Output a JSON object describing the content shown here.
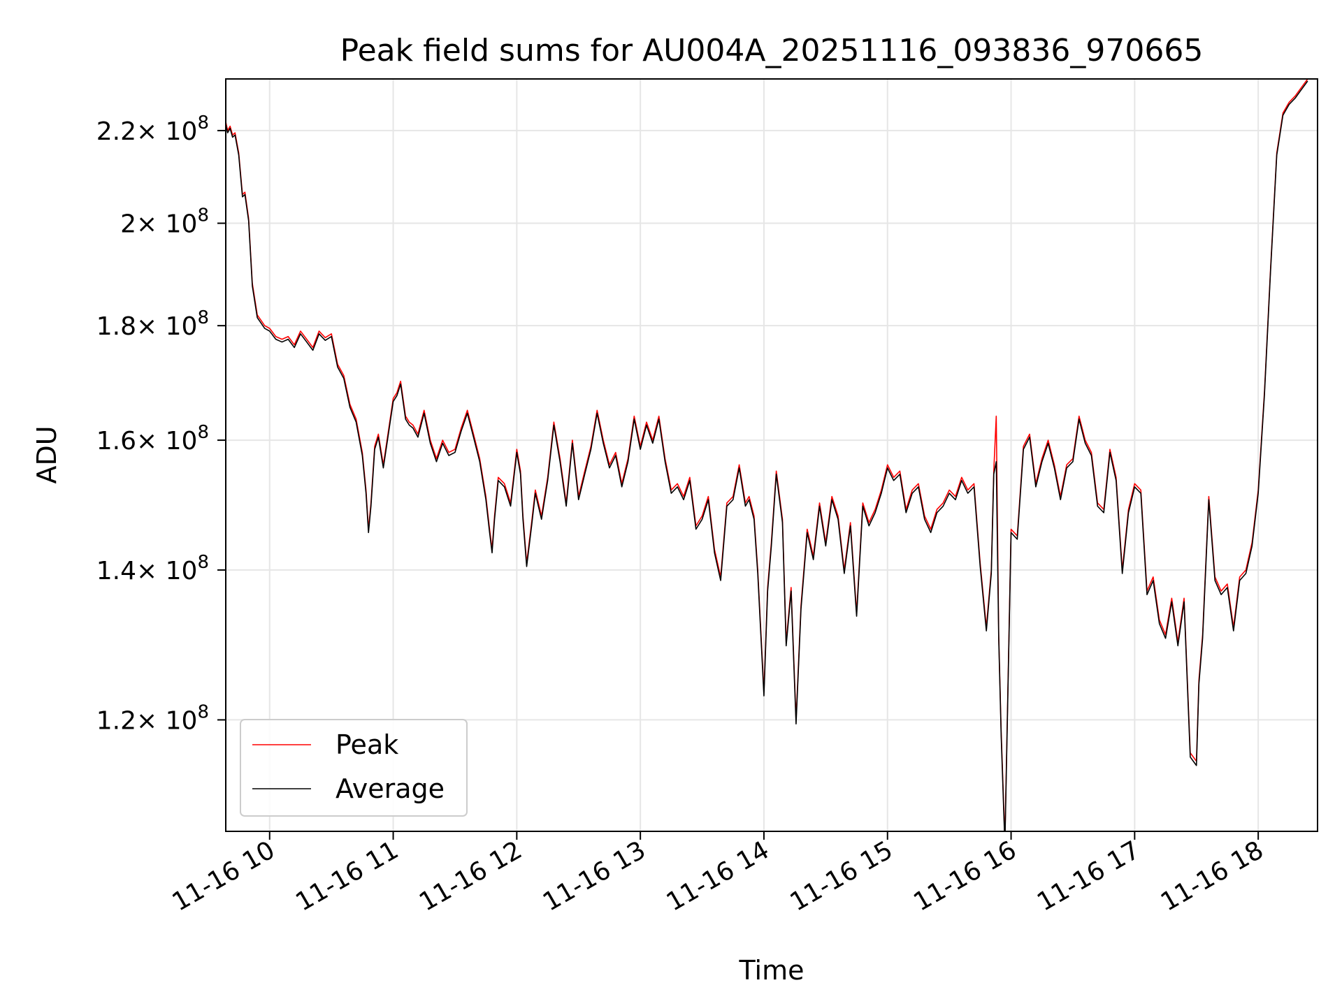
{
  "chart_data": {
    "type": "line",
    "title": "Peak field sums for AU004A_20251116_093836_970665",
    "xlabel": "Time",
    "ylabel": "ADU",
    "y_scale": "log",
    "grid": true,
    "legend_position": "lower-left",
    "x_ticks": [
      "11-16 10",
      "11-16 11",
      "11-16 12",
      "11-16 13",
      "11-16 14",
      "11-16 15",
      "11-16 16",
      "11-16 17",
      "11-16 18"
    ],
    "x_tick_hours": [
      10,
      11,
      12,
      13,
      14,
      15,
      16,
      17,
      18
    ],
    "xlim_hours": [
      9.645,
      18.48
    ],
    "y_ticks": [
      {
        "mant": "1.2",
        "value": 120000000
      },
      {
        "mant": "1.4",
        "value": 140000000
      },
      {
        "mant": "1.6",
        "value": 160000000
      },
      {
        "mant": "1.8",
        "value": 180000000
      },
      {
        "mant": "2",
        "value": 200000000
      },
      {
        "mant": "2.2",
        "value": 220000000
      }
    ],
    "y_tick_base": "× 10",
    "y_tick_exp": "8",
    "ylim": [
      107000000,
      232000000
    ],
    "series": [
      {
        "name": "Peak",
        "color": "#ff0000"
      },
      {
        "name": "Average",
        "color": "#000000"
      }
    ],
    "x": [
      9.645,
      9.66,
      9.68,
      9.7,
      9.72,
      9.75,
      9.78,
      9.8,
      9.83,
      9.86,
      9.9,
      9.93,
      9.96,
      10.0,
      10.05,
      10.1,
      10.15,
      10.2,
      10.25,
      10.3,
      10.35,
      10.4,
      10.42,
      10.45,
      10.5,
      10.55,
      10.6,
      10.65,
      10.7,
      10.75,
      10.78,
      10.8,
      10.82,
      10.85,
      10.88,
      10.92,
      10.95,
      11.0,
      11.03,
      11.06,
      11.1,
      11.13,
      11.16,
      11.2,
      11.25,
      11.3,
      11.35,
      11.4,
      11.45,
      11.5,
      11.55,
      11.6,
      11.65,
      11.7,
      11.75,
      11.78,
      11.8,
      11.82,
      11.85,
      11.9,
      11.95,
      12.0,
      12.03,
      12.05,
      12.08,
      12.12,
      12.15,
      12.2,
      12.25,
      12.3,
      12.35,
      12.4,
      12.45,
      12.5,
      12.55,
      12.6,
      12.65,
      12.7,
      12.75,
      12.8,
      12.85,
      12.9,
      12.95,
      13.0,
      13.05,
      13.1,
      13.15,
      13.2,
      13.25,
      13.3,
      13.35,
      13.4,
      13.45,
      13.5,
      13.55,
      13.6,
      13.65,
      13.7,
      13.75,
      13.8,
      13.85,
      13.88,
      13.92,
      13.95,
      14.0,
      14.03,
      14.06,
      14.1,
      14.15,
      14.18,
      14.22,
      14.26,
      14.3,
      14.35,
      14.4,
      14.45,
      14.5,
      14.55,
      14.6,
      14.65,
      14.7,
      14.75,
      14.8,
      14.85,
      14.9,
      14.95,
      15.0,
      15.05,
      15.1,
      15.15,
      15.2,
      15.25,
      15.3,
      15.35,
      15.4,
      15.45,
      15.5,
      15.55,
      15.6,
      15.65,
      15.7,
      15.75,
      15.8,
      15.84,
      15.86,
      15.88,
      15.9,
      15.92,
      15.95,
      16.0,
      16.05,
      16.1,
      16.15,
      16.2,
      16.25,
      16.3,
      16.35,
      16.4,
      16.45,
      16.5,
      16.55,
      16.6,
      16.65,
      16.7,
      16.75,
      16.8,
      16.85,
      16.9,
      16.95,
      17.0,
      17.05,
      17.1,
      17.15,
      17.2,
      17.25,
      17.3,
      17.35,
      17.4,
      17.45,
      17.5,
      17.52,
      17.55,
      17.6,
      17.65,
      17.7,
      17.75,
      17.8,
      17.85,
      17.9,
      17.95,
      18.0,
      18.05,
      18.1,
      18.15,
      18.2,
      18.22,
      18.25,
      18.3,
      18.35,
      18.4,
      18.45,
      18.48
    ],
    "peak": [
      222000000,
      220000000,
      221000000,
      219000000,
      219500000,
      215000000,
      206000000,
      206500000,
      201000000,
      188000000,
      182000000,
      181000000,
      180000000,
      179500000,
      178000000,
      177500000,
      178000000,
      176500000,
      179000000,
      177500000,
      176000000,
      179000000,
      178500000,
      177800000,
      178500000,
      173000000,
      171000000,
      166000000,
      163500000,
      158000000,
      152000000,
      146000000,
      150000000,
      159000000,
      161000000,
      156000000,
      160000000,
      167000000,
      168000000,
      170000000,
      164000000,
      163000000,
      162500000,
      161000000,
      165000000,
      160000000,
      157000000,
      160000000,
      158000000,
      158500000,
      162000000,
      165000000,
      161000000,
      157000000,
      151000000,
      146000000,
      143000000,
      148000000,
      154000000,
      153000000,
      150000000,
      158500000,
      155000000,
      148000000,
      141000000,
      147000000,
      152000000,
      148000000,
      154000000,
      163000000,
      157000000,
      150000000,
      160000000,
      151000000,
      155000000,
      159000000,
      165000000,
      160000000,
      156000000,
      158000000,
      153000000,
      157000000,
      164000000,
      159000000,
      163000000,
      160000000,
      164000000,
      157000000,
      152000000,
      153000000,
      151000000,
      154000000,
      146500000,
      148000000,
      151000000,
      143000000,
      139000000,
      150000000,
      151000000,
      156000000,
      150000000,
      151000000,
      148000000,
      140000000,
      123500000,
      137500000,
      144000000,
      155000000,
      147500000,
      130000000,
      137500000,
      120000000,
      135000000,
      146000000,
      142000000,
      150000000,
      144000000,
      151000000,
      148000000,
      140000000,
      147000000,
      134000000,
      150000000,
      147000000,
      149000000,
      152000000,
      156000000,
      154000000,
      155000000,
      149000000,
      152000000,
      153000000,
      148000000,
      146000000,
      149000000,
      150000000,
      152000000,
      151000000,
      154000000,
      152000000,
      153000000,
      141000000,
      132000000,
      140000000,
      155000000,
      164000000,
      131000000,
      118500000,
      106000000,
      146000000,
      145000000,
      159000000,
      161000000,
      153000000,
      157000000,
      160000000,
      156000000,
      151000000,
      156000000,
      157000000,
      164000000,
      160000000,
      158000000,
      150000000,
      149000000,
      158500000,
      154000000,
      140000000,
      149000000,
      153000000,
      152000000,
      137000000,
      139000000,
      133000000,
      131000000,
      136000000,
      130000000,
      136000000,
      116000000,
      115000000,
      125000000,
      131000000,
      151000000,
      139000000,
      137000000,
      138000000,
      132000000,
      139000000,
      140000000,
      144000000,
      152000000,
      168000000,
      191000000,
      215000000,
      224000000,
      225000000,
      226500000,
      228000000,
      230000000,
      232000000
    ],
    "average": [
      221500000,
      219500000,
      220500000,
      218500000,
      219000000,
      214500000,
      205500000,
      206000000,
      200500000,
      187500000,
      181500000,
      180500000,
      179500000,
      179000000,
      177500000,
      177000000,
      177500000,
      176000000,
      178500000,
      177000000,
      175500000,
      178500000,
      178000000,
      177300000,
      178000000,
      172500000,
      170500000,
      165500000,
      163000000,
      157500000,
      151500000,
      145500000,
      149500000,
      158500000,
      160500000,
      155500000,
      159500000,
      166500000,
      167500000,
      169500000,
      163500000,
      162500000,
      162000000,
      160500000,
      164500000,
      159500000,
      156500000,
      159500000,
      157500000,
      158000000,
      161500000,
      164500000,
      160500000,
      156500000,
      150500000,
      145500000,
      142500000,
      147500000,
      153500000,
      152500000,
      149500000,
      158000000,
      154500000,
      147500000,
      140500000,
      146500000,
      151500000,
      147500000,
      153500000,
      162500000,
      156500000,
      149500000,
      159500000,
      150500000,
      154500000,
      158500000,
      164500000,
      159500000,
      155500000,
      157500000,
      152500000,
      156500000,
      163500000,
      158500000,
      162500000,
      159500000,
      163500000,
      156500000,
      151500000,
      152500000,
      150500000,
      153500000,
      146000000,
      147500000,
      150500000,
      142500000,
      138500000,
      149500000,
      150500000,
      155500000,
      149500000,
      150500000,
      147500000,
      139500000,
      123000000,
      137000000,
      143500000,
      154500000,
      147000000,
      129500000,
      137000000,
      119500000,
      134500000,
      145500000,
      141500000,
      149500000,
      143500000,
      150500000,
      147500000,
      139500000,
      146500000,
      133500000,
      149500000,
      146500000,
      148500000,
      151500000,
      155500000,
      153500000,
      154500000,
      148500000,
      151500000,
      152500000,
      147500000,
      145500000,
      148500000,
      149500000,
      151500000,
      150500000,
      153500000,
      151500000,
      152500000,
      140500000,
      131500000,
      139500000,
      154500000,
      156500000,
      130500000,
      118000000,
      105500000,
      145500000,
      144500000,
      158500000,
      160500000,
      152500000,
      156500000,
      159500000,
      155500000,
      150500000,
      155500000,
      156500000,
      163500000,
      159500000,
      157500000,
      149500000,
      148500000,
      158000000,
      153500000,
      139500000,
      148500000,
      152500000,
      151500000,
      136500000,
      138500000,
      132500000,
      130500000,
      135500000,
      129500000,
      135500000,
      115500000,
      114500000,
      124500000,
      130500000,
      150500000,
      138500000,
      136500000,
      137500000,
      131500000,
      138500000,
      139500000,
      143500000,
      151500000,
      167500000,
      190500000,
      214500000,
      223500000,
      224500000,
      226000000,
      227500000,
      229500000,
      231500000
    ]
  }
}
